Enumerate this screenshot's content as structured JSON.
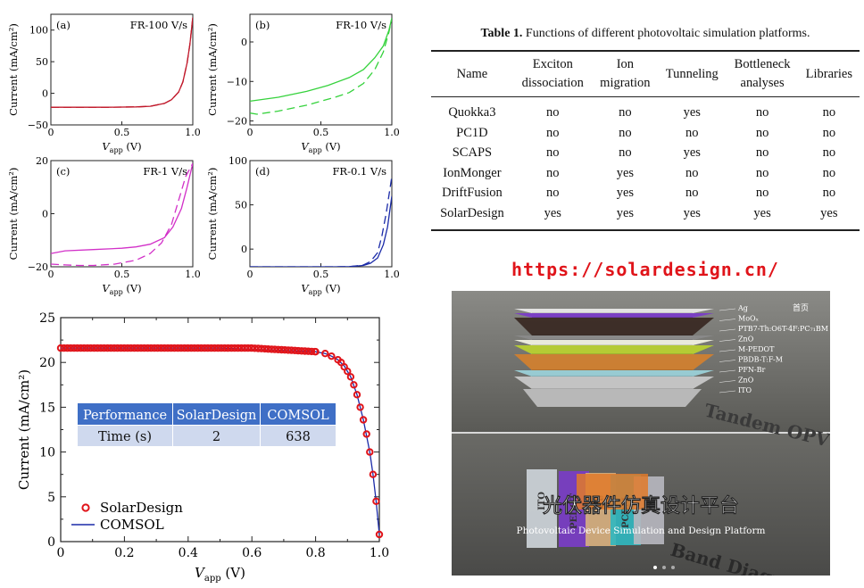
{
  "panels": [
    {
      "letter": "(a)",
      "rate": "FR-100 V/s",
      "yticks": [
        "100",
        "50",
        "0",
        "−50"
      ],
      "xticks": [
        "0",
        "0.5",
        "1.0"
      ],
      "ylabel": "Current (mA/cm²)",
      "xlabel": "V",
      "xsub": "app",
      "xunit": "(V)",
      "color": "#c0182a"
    },
    {
      "letter": "(b)",
      "rate": "FR-10 V/s",
      "yticks": [
        "0",
        "−10",
        "−20"
      ],
      "xticks": [
        "0",
        "0.5",
        "1.0"
      ],
      "ylabel": "Current (mA/cm²)",
      "xlabel": "V",
      "xsub": "app",
      "xunit": "(V)",
      "color": "#35d23c"
    },
    {
      "letter": "(c)",
      "rate": "FR-1 V/s",
      "yticks": [
        "20",
        "0",
        "−20"
      ],
      "xticks": [
        "0",
        "0.5",
        "1.0"
      ],
      "ylabel": "Current (mA/cm²)",
      "xlabel": "V",
      "xsub": "app",
      "xunit": "(V)",
      "color": "#d230c8"
    },
    {
      "letter": "(d)",
      "rate": "FR-0.1 V/s",
      "yticks": [
        "100",
        "50",
        "0"
      ],
      "xticks": [
        "0",
        "0.5",
        "1.0"
      ],
      "ylabel": "Current (mA/cm²)",
      "xlabel": "V",
      "xsub": "app",
      "xunit": "(V)",
      "color": "#1a2aa8"
    }
  ],
  "chart_data": [
    {
      "type": "line",
      "title": "FR-100 V/s",
      "xlabel": "Vapp (V)",
      "ylabel": "Current (mA/cm²)",
      "xlim": [
        0,
        1.0
      ],
      "ylim": [
        -50,
        125
      ],
      "series": [
        {
          "style": "solid",
          "x": [
            0,
            0.2,
            0.4,
            0.6,
            0.7,
            0.8,
            0.85,
            0.9,
            0.93,
            0.96,
            0.98,
            1.0
          ],
          "y": [
            -22,
            -22,
            -22,
            -21.5,
            -20.5,
            -16,
            -10,
            2,
            18,
            48,
            78,
            120
          ]
        },
        {
          "style": "dashed",
          "x": [
            0,
            0.2,
            0.4,
            0.6,
            0.7,
            0.8,
            0.85,
            0.9,
            0.93,
            0.96,
            0.98,
            1.0
          ],
          "y": [
            -22,
            -22,
            -22,
            -21.5,
            -20.5,
            -16,
            -10,
            2,
            18,
            48,
            78,
            120
          ]
        }
      ]
    },
    {
      "type": "line",
      "title": "FR-10 V/s",
      "xlabel": "Vapp (V)",
      "ylabel": "Current (mA/cm²)",
      "xlim": [
        0,
        1.0
      ],
      "ylim": [
        -21,
        7
      ],
      "series": [
        {
          "style": "solid",
          "x": [
            0,
            0.2,
            0.4,
            0.55,
            0.7,
            0.8,
            0.88,
            0.94,
            0.98,
            1.0
          ],
          "y": [
            -15,
            -14,
            -12.5,
            -11,
            -9,
            -7,
            -4,
            -1,
            3,
            6
          ]
        },
        {
          "style": "dashed",
          "x": [
            0,
            0.05,
            0.2,
            0.4,
            0.6,
            0.7,
            0.8,
            0.88,
            0.94,
            0.98,
            1.0
          ],
          "y": [
            -18,
            -18.3,
            -17.5,
            -16,
            -14,
            -12.8,
            -10.5,
            -7,
            -2.5,
            2.5,
            6
          ]
        }
      ]
    },
    {
      "type": "line",
      "title": "FR-1 V/s",
      "xlabel": "Vapp (V)",
      "ylabel": "Current (mA/cm²)",
      "xlim": [
        0,
        1.0
      ],
      "ylim": [
        -20,
        20
      ],
      "series": [
        {
          "style": "solid",
          "x": [
            0,
            0.1,
            0.3,
            0.5,
            0.6,
            0.7,
            0.8,
            0.86,
            0.92,
            0.96,
            1.0
          ],
          "y": [
            -15,
            -14,
            -13.5,
            -13,
            -12.5,
            -11.5,
            -9,
            -5,
            2,
            10,
            19
          ]
        },
        {
          "style": "dashed",
          "x": [
            0,
            0.1,
            0.2,
            0.3,
            0.45,
            0.6,
            0.7,
            0.78,
            0.85,
            0.9,
            0.95,
            1.0
          ],
          "y": [
            -19,
            -19.3,
            -19.5,
            -19.5,
            -19,
            -17.5,
            -15,
            -11,
            -4,
            5,
            14,
            19
          ]
        }
      ]
    },
    {
      "type": "line",
      "title": "FR-0.1 V/s",
      "xlabel": "Vapp (V)",
      "ylabel": "Current (mA/cm²)",
      "xlim": [
        0,
        1.0
      ],
      "ylim": [
        -20,
        100
      ],
      "series": [
        {
          "style": "solid",
          "x": [
            0,
            0.3,
            0.6,
            0.7,
            0.8,
            0.85,
            0.9,
            0.94,
            0.97,
            1.0
          ],
          "y": [
            -20,
            -20,
            -20,
            -19.8,
            -18.5,
            -16,
            -10,
            5,
            25,
            60
          ]
        },
        {
          "style": "dashed",
          "x": [
            0,
            0.3,
            0.6,
            0.7,
            0.8,
            0.85,
            0.9,
            0.93,
            0.96,
            1.0
          ],
          "y": [
            -20,
            -20,
            -20,
            -19.8,
            -18,
            -14,
            -4,
            15,
            40,
            82
          ]
        }
      ]
    },
    {
      "type": "line",
      "xlabel": "Vapp (V)",
      "ylabel": "Current (mA/cm²)",
      "xlim": [
        0,
        1.0
      ],
      "ylim": [
        0,
        25
      ],
      "legend": "bottom-left",
      "series": [
        {
          "name": "SolarDesign",
          "style": "markers",
          "x": [
            0,
            0.5,
            0.8,
            0.83,
            0.85,
            0.87,
            0.88,
            0.89,
            0.9,
            0.91,
            0.92,
            0.93,
            0.94,
            0.95,
            0.96,
            0.97,
            0.98,
            0.99
          ],
          "y": [
            21.6,
            21.6,
            21.2,
            21.0,
            20.7,
            20.3,
            20.0,
            19.5,
            19.0,
            18.4,
            17.5,
            16.4,
            15.0,
            13.6,
            12.0,
            10.0,
            7.5,
            4.5
          ]
        },
        {
          "name": "COMSOL",
          "style": "solid",
          "x": [
            0,
            0.5,
            0.8,
            0.83,
            0.85,
            0.87,
            0.89,
            0.91,
            0.93,
            0.95,
            0.97,
            0.98,
            0.99,
            1.0
          ],
          "y": [
            21.6,
            21.6,
            21.2,
            21.0,
            20.7,
            20.3,
            19.6,
            18.4,
            16.4,
            13.6,
            10.0,
            7.5,
            4.5,
            0.8
          ]
        }
      ],
      "ticks": {
        "x": [
          "0",
          "0.2",
          "0.4",
          "0.6",
          "0.8",
          "1.0"
        ],
        "y": [
          "0",
          "5",
          "10",
          "15",
          "20",
          "25"
        ]
      }
    }
  ],
  "perf_table": {
    "headers": [
      "Performance",
      "SolarDesign",
      "COMSOL"
    ],
    "row": [
      "Time (s)",
      "2",
      "638"
    ]
  },
  "main_legend": [
    "SolarDesign",
    "COMSOL"
  ],
  "table": {
    "caption_bold": "Table 1.",
    "caption_text": "Functions of different photovoltaic simulation platforms.",
    "headers": [
      [
        "Name"
      ],
      [
        "Exciton",
        "dissociation"
      ],
      [
        "Ion",
        "migration"
      ],
      [
        "Tunneling"
      ],
      [
        "Bottleneck",
        "analyses"
      ],
      [
        "Libraries"
      ]
    ],
    "rows": [
      [
        "Quokka3",
        "no",
        "no",
        "yes",
        "no",
        "no"
      ],
      [
        "PC1D",
        "no",
        "no",
        "no",
        "no",
        "no"
      ],
      [
        "SCAPS",
        "no",
        "no",
        "yes",
        "no",
        "no"
      ],
      [
        "IonMonger",
        "no",
        "yes",
        "no",
        "no",
        "no"
      ],
      [
        "DriftFusion",
        "no",
        "yes",
        "no",
        "no",
        "no"
      ],
      [
        "SolarDesign",
        "yes",
        "yes",
        "yes",
        "yes",
        "yes"
      ]
    ]
  },
  "url": "https://solardesign.cn/",
  "promo": {
    "layers": [
      "Ag",
      "MoOₓ",
      "PTB7-Th:O6T-4F:PC₇₁BM",
      "ZnO",
      "M-PEDOT",
      "PBDB-T:F-M",
      "PFN-Br",
      "ZnO",
      "ITO"
    ],
    "tandem": "Tandem OPV",
    "corner": "首页",
    "zh_title": "光伏器件仿真设计平台",
    "en_title": "Photovoltaic Device Simulation and Design Platform",
    "band": "Band Diagram",
    "blocks": [
      "ITO",
      "PEDOT",
      "ite",
      "PCBM",
      "Al"
    ],
    "colors": {
      "bg": "#6a6a66",
      "accent": "#8a3ad8"
    }
  }
}
